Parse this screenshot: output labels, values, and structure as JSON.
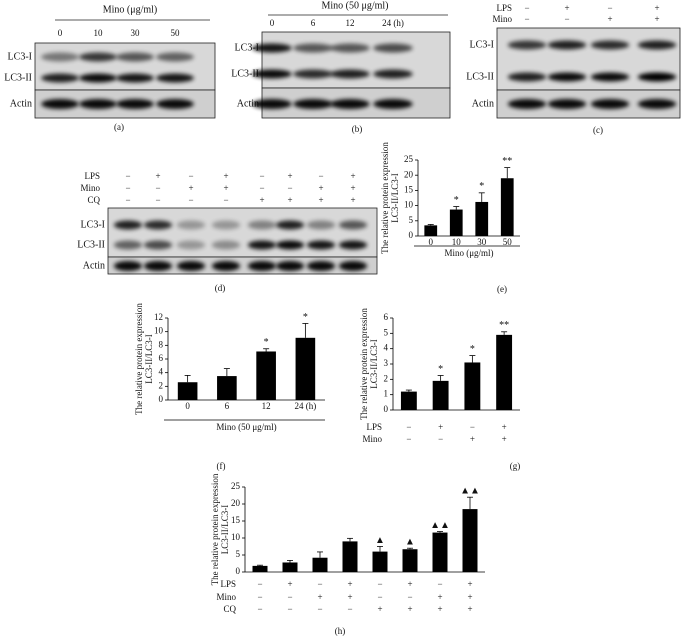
{
  "blots": [
    {
      "panel": "(a)",
      "header": "Mino (μg/ml)",
      "lanes": [
        "0",
        "10",
        "30",
        "50"
      ],
      "bands": [
        "LC3-I",
        "LC3-II",
        "Actin"
      ]
    },
    {
      "panel": "(b)",
      "header": "Mino (50 μg/ml)",
      "lanes": [
        "0",
        "6",
        "12",
        "24 (h)"
      ],
      "bands": [
        "LC3-I",
        "LC3-II",
        "Actin"
      ]
    },
    {
      "panel": "(c)",
      "rows": [
        {
          "label": "LPS",
          "signs": [
            "−",
            "+",
            "−",
            "+"
          ]
        },
        {
          "label": "Mino",
          "signs": [
            "−",
            "−",
            "+",
            "+"
          ]
        }
      ],
      "bands": [
        "LC3-I",
        "LC3-II",
        "Actin"
      ]
    },
    {
      "panel": "(d)",
      "rows": [
        {
          "label": "LPS",
          "signs": [
            "−",
            "+",
            "−",
            "+",
            "−",
            "+",
            "−",
            "+"
          ]
        },
        {
          "label": "Mino",
          "signs": [
            "−",
            "−",
            "+",
            "+",
            "−",
            "−",
            "+",
            "+"
          ]
        },
        {
          "label": "CQ",
          "signs": [
            "−",
            "−",
            "−",
            "−",
            "+",
            "+",
            "+",
            "+"
          ]
        }
      ],
      "bands": [
        "LC3-I",
        "LC3-II",
        "Actin"
      ]
    }
  ],
  "chart_data": [
    {
      "type": "bar",
      "panel": "(e)",
      "y_label": [
        "The relative protein expression",
        "LC3-II/LC3-I"
      ],
      "x_label": "Mino (μg/ml)",
      "categories": [
        "0",
        "10",
        "30",
        "50"
      ],
      "values": [
        3.5,
        8.7,
        11.2,
        19
      ],
      "errors": [
        0.3,
        1,
        3,
        3.5
      ],
      "annotations": [
        null,
        "*",
        "*",
        "**"
      ],
      "color": "#000000",
      "ylim": [
        0,
        25
      ],
      "yticks": [
        0,
        5,
        10,
        15,
        20,
        25
      ]
    },
    {
      "type": "bar",
      "panel": "(f)",
      "y_label": [
        "The relative protein expression",
        "LC3-II/LC3-I"
      ],
      "x_label": "Mino (50 μg/ml)",
      "categories": [
        "0",
        "6",
        "12",
        "24 (h)"
      ],
      "values": [
        2.6,
        3.5,
        7.1,
        9.1
      ],
      "errors": [
        1,
        1.1,
        0.4,
        2.1
      ],
      "annotations": [
        null,
        null,
        "*",
        "*"
      ],
      "color": "#000000",
      "ylim": [
        0,
        12
      ],
      "yticks": [
        0,
        2,
        4,
        6,
        8,
        10,
        12
      ]
    },
    {
      "type": "bar",
      "panel": "(g)",
      "y_label": [
        "The relative protein expression",
        "LC3-II/LC3-I"
      ],
      "rows": [
        {
          "label": "LPS",
          "signs": [
            "−",
            "+",
            "−",
            "+"
          ]
        },
        {
          "label": "Mino",
          "signs": [
            "−",
            "−",
            "+",
            "+"
          ]
        }
      ],
      "values": [
        1.2,
        1.9,
        3.1,
        4.9
      ],
      "errors": [
        0.1,
        0.35,
        0.45,
        0.2
      ],
      "annotations": [
        null,
        "*",
        "*",
        "**"
      ],
      "color": "#000000",
      "ylim": [
        0,
        6
      ],
      "yticks": [
        0,
        1,
        2,
        3,
        4,
        5,
        6
      ]
    },
    {
      "type": "bar",
      "panel": "(h)",
      "y_label": [
        "The relative protein expression",
        "LC3-II/LC3-I"
      ],
      "rows": [
        {
          "label": "LPS",
          "signs": [
            "−",
            "+",
            "−",
            "+",
            "−",
            "+",
            "−",
            "+"
          ]
        },
        {
          "label": "Mino",
          "signs": [
            "−",
            "−",
            "+",
            "+",
            "−",
            "−",
            "+",
            "+"
          ]
        },
        {
          "label": "CQ",
          "signs": [
            "−",
            "−",
            "−",
            "−",
            "+",
            "+",
            "+",
            "+"
          ]
        }
      ],
      "values": [
        1.8,
        2.8,
        4.2,
        9,
        6,
        6.7,
        11.6,
        18.5
      ],
      "errors": [
        0.2,
        0.6,
        1.7,
        0.9,
        1.5,
        0.3,
        0.3,
        3.5
      ],
      "annotations": [
        null,
        null,
        null,
        null,
        "▲",
        "▲",
        "▲▲",
        "▲▲"
      ],
      "color": "#000000",
      "ylim": [
        0,
        25
      ],
      "yticks": [
        0,
        5,
        10,
        15,
        20,
        25
      ]
    }
  ]
}
